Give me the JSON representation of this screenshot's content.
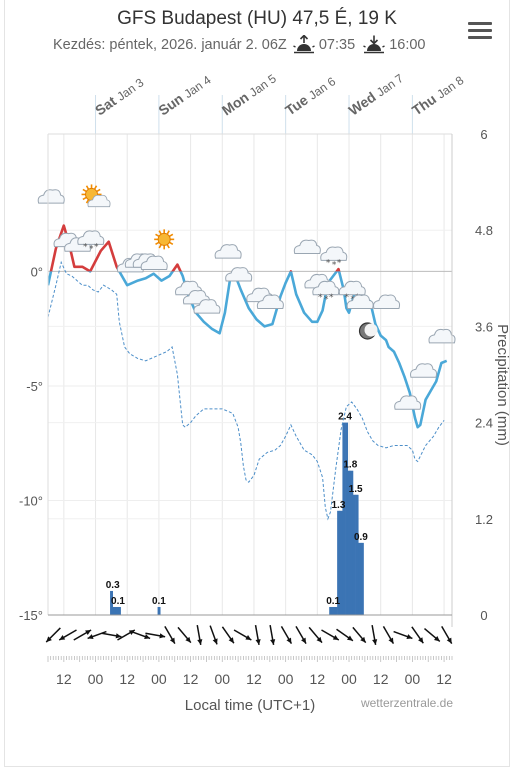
{
  "header": {
    "title": "GFS Budapest (HU) 47,5 É, 19 K",
    "start_label": "Kezdés: péntek, 2026. január 2. 06Z",
    "sunrise": "07:35",
    "sunset": "16:00",
    "sunrise_icon": "sunrise-icon",
    "sunset_icon": "sunset-icon",
    "menu_icon": "hamburger-menu-icon"
  },
  "footer": {
    "credit": "wetterzentrale.de"
  },
  "chart_data": {
    "type": "line",
    "xlabel": "Local time (UTC+1)",
    "ylabel_right": "Precipitation (mm)",
    "temp_ylim": [
      -15,
      6
    ],
    "precip_ylim": [
      0,
      6
    ],
    "x_range_hours": [
      0,
      153
    ],
    "day_labels": [
      {
        "day": "Sat",
        "date": "Jan 3",
        "h": 30
      },
      {
        "day": "Sun",
        "date": "Jan 4",
        "h": 54
      },
      {
        "day": "Mon",
        "date": "Jan 5",
        "h": 78
      },
      {
        "day": "Tue",
        "date": "Jan 6",
        "h": 102
      },
      {
        "day": "Wed",
        "date": "Jan 7",
        "h": 126
      },
      {
        "day": "Thu",
        "date": "Jan 8",
        "h": 150
      }
    ],
    "x_ticks": [
      {
        "label": "12",
        "h": 6
      },
      {
        "label": "00",
        "h": 18
      },
      {
        "label": "12",
        "h": 30
      },
      {
        "label": "00",
        "h": 42
      },
      {
        "label": "12",
        "h": 54
      },
      {
        "label": "00",
        "h": 66
      },
      {
        "label": "12",
        "h": 78
      },
      {
        "label": "00",
        "h": 90
      },
      {
        "label": "12",
        "h": 102
      },
      {
        "label": "00",
        "h": 114
      },
      {
        "label": "12",
        "h": 126
      },
      {
        "label": "00",
        "h": 138
      },
      {
        "label": "12",
        "h": 150
      }
    ],
    "temp_ticks": [
      {
        "label": "0°",
        "v": 0
      },
      {
        "label": "-5°",
        "v": -5
      },
      {
        "label": "-10°",
        "v": -10
      },
      {
        "label": "-15°",
        "v": -15
      }
    ],
    "precip_ticks": [
      {
        "label": "0",
        "v": 0
      },
      {
        "label": "1.2",
        "v": 1.2
      },
      {
        "label": "2.4",
        "v": 2.4
      },
      {
        "label": "3.6",
        "v": 3.6
      },
      {
        "label": "4.8",
        "v": 4.8
      },
      {
        "label": "6",
        "v": 6
      }
    ],
    "series": [
      {
        "name": "Temperature",
        "unit": "°C",
        "color_above": "#d43d3d",
        "color_below": "#4aa8d8",
        "points": [
          [
            0,
            -0.6
          ],
          [
            3,
            1.0
          ],
          [
            6,
            2.0
          ],
          [
            8,
            1.2
          ],
          [
            10,
            0.2
          ],
          [
            13,
            0.2
          ],
          [
            16,
            0.0
          ],
          [
            20,
            0.9
          ],
          [
            23,
            1.3
          ],
          [
            26,
            0.2
          ],
          [
            30,
            -0.6
          ],
          [
            34,
            -0.4
          ],
          [
            37,
            -0.3
          ],
          [
            40,
            -0.1
          ],
          [
            43,
            -0.4
          ],
          [
            46,
            -0.2
          ],
          [
            49,
            0.3
          ],
          [
            51,
            -0.2
          ],
          [
            53,
            -1.0
          ],
          [
            56,
            -1.8
          ],
          [
            59,
            -2.2
          ],
          [
            62,
            -2.5
          ],
          [
            65,
            -2.7
          ],
          [
            67,
            -1.8
          ],
          [
            69,
            -0.3
          ],
          [
            71,
            -0.2
          ],
          [
            73,
            -0.8
          ],
          [
            76,
            -1.6
          ],
          [
            79,
            -2.1
          ],
          [
            82,
            -2.4
          ],
          [
            85,
            -2.3
          ],
          [
            88,
            -1.1
          ],
          [
            90,
            -0.5
          ],
          [
            92,
            0.0
          ],
          [
            94,
            -1.0
          ],
          [
            97,
            -1.8
          ],
          [
            100,
            -2.2
          ],
          [
            102,
            -2.2
          ],
          [
            104,
            -1.7
          ],
          [
            106,
            -0.5
          ],
          [
            108,
            -0.2
          ],
          [
            110,
            0.1
          ],
          [
            112,
            -0.8
          ],
          [
            113,
            -1.6
          ],
          [
            114,
            -1.8
          ],
          [
            116,
            -1.0
          ],
          [
            118,
            -0.8
          ],
          [
            120,
            -1.5
          ],
          [
            122,
            -1.3
          ],
          [
            124,
            -2.3
          ],
          [
            126,
            -2.8
          ],
          [
            128,
            -3.0
          ],
          [
            129,
            -3.3
          ],
          [
            131,
            -3.5
          ],
          [
            133,
            -4.0
          ],
          [
            135,
            -4.6
          ],
          [
            137,
            -5.3
          ],
          [
            139,
            -6.4
          ],
          [
            140,
            -6.8
          ],
          [
            141,
            -6.7
          ],
          [
            143,
            -5.6
          ],
          [
            145,
            -5.2
          ],
          [
            147,
            -4.8
          ],
          [
            149,
            -4.0
          ],
          [
            151,
            -3.9
          ]
        ]
      },
      {
        "name": "Dewpoint",
        "unit": "°C",
        "color": "#4d8fc9",
        "points": [
          [
            0,
            -2.0
          ],
          [
            3,
            -0.6
          ],
          [
            5,
            0.4
          ],
          [
            7,
            -0.1
          ],
          [
            9,
            -0.2
          ],
          [
            11,
            -0.4
          ],
          [
            13,
            -0.6
          ],
          [
            15,
            -0.6
          ],
          [
            17,
            -0.8
          ],
          [
            19,
            -0.9
          ],
          [
            21,
            -0.6
          ],
          [
            24,
            -0.8
          ],
          [
            26,
            -1.0
          ],
          [
            27,
            -2.2
          ],
          [
            29,
            -3.3
          ],
          [
            31,
            -3.6
          ],
          [
            34,
            -3.8
          ],
          [
            37,
            -3.9
          ],
          [
            41,
            -3.7
          ],
          [
            45,
            -3.5
          ],
          [
            47,
            -3.3
          ],
          [
            49,
            -4.5
          ],
          [
            50,
            -5.6
          ],
          [
            51,
            -6.7
          ],
          [
            52,
            -6.8
          ],
          [
            54,
            -6.6
          ],
          [
            56,
            -6.3
          ],
          [
            59,
            -6.0
          ],
          [
            62,
            -6.0
          ],
          [
            66,
            -6.0
          ],
          [
            70,
            -6.2
          ],
          [
            72,
            -6.8
          ],
          [
            73,
            -7.5
          ],
          [
            74,
            -8.5
          ],
          [
            75,
            -9.1
          ],
          [
            76,
            -9.2
          ],
          [
            78,
            -8.9
          ],
          [
            80,
            -8.2
          ],
          [
            83,
            -7.9
          ],
          [
            86,
            -7.8
          ],
          [
            88,
            -7.6
          ],
          [
            90,
            -7.2
          ],
          [
            92,
            -6.7
          ],
          [
            94,
            -7.2
          ],
          [
            97,
            -7.8
          ],
          [
            100,
            -8.0
          ],
          [
            102,
            -8.3
          ],
          [
            104,
            -9.0
          ],
          [
            105,
            -10.3
          ],
          [
            106,
            -10.8
          ],
          [
            107,
            -10.5
          ],
          [
            109,
            -8.6
          ],
          [
            111,
            -6.9
          ],
          [
            113,
            -5.9
          ],
          [
            115,
            -5.7
          ],
          [
            117,
            -6.0
          ],
          [
            119,
            -6.4
          ],
          [
            121,
            -7.0
          ],
          [
            123,
            -7.4
          ],
          [
            125,
            -7.6
          ],
          [
            128,
            -7.7
          ],
          [
            131,
            -7.6
          ],
          [
            134,
            -7.6
          ],
          [
            136,
            -7.6
          ],
          [
            138,
            -7.8
          ],
          [
            139,
            -8.2
          ],
          [
            140,
            -8.3
          ],
          [
            143,
            -7.6
          ],
          [
            146,
            -7.2
          ],
          [
            148,
            -6.8
          ],
          [
            150,
            -6.5
          ]
        ]
      },
      {
        "name": "Precipitation",
        "unit": "mm",
        "type": "bar",
        "color": "#3b74b4",
        "bars": [
          [
            24,
            0.3
          ],
          [
            25,
            0.1
          ],
          [
            26,
            0.1
          ],
          [
            27,
            0.1
          ],
          [
            42,
            0.1
          ],
          [
            107,
            0.1
          ],
          [
            108,
            0.1
          ],
          [
            109,
            0.1
          ],
          [
            110,
            1.3
          ],
          [
            111,
            1.3
          ],
          [
            112,
            2.4
          ],
          [
            113,
            2.4
          ],
          [
            114,
            1.8
          ],
          [
            115,
            1.8
          ],
          [
            116,
            1.5
          ],
          [
            117,
            1.5
          ],
          [
            118,
            0.9
          ],
          [
            119,
            0.9
          ]
        ],
        "labels": [
          {
            "h": 24.5,
            "v": 0.3,
            "text": "0.3"
          },
          {
            "h": 26.5,
            "v": 0.1,
            "text": "0.1"
          },
          {
            "h": 42,
            "v": 0.1,
            "text": "0.1"
          },
          {
            "h": 108,
            "v": 0.1,
            "text": "0.1"
          },
          {
            "h": 110,
            "v": 1.3,
            "text": "1.3"
          },
          {
            "h": 112.5,
            "v": 2.4,
            "text": "2.4"
          },
          {
            "h": 114.5,
            "v": 1.8,
            "text": "1.8"
          },
          {
            "h": 116.5,
            "v": 1.5,
            "text": "1.5"
          },
          {
            "h": 118.5,
            "v": 0.9,
            "text": "0.9"
          }
        ]
      }
    ],
    "weather_icons": [
      {
        "h": 1,
        "v": 3.2,
        "icon": "cloud-icon"
      },
      {
        "h": 7,
        "v": 1.3,
        "icon": "cloud-icon"
      },
      {
        "h": 11,
        "v": 1.1,
        "icon": "cloud-icon"
      },
      {
        "h": 16,
        "v": 1.4,
        "icon": "snow-cloud-icon"
      },
      {
        "h": 18,
        "v": 3.1,
        "icon": "sun-cloud-icon"
      },
      {
        "h": 31,
        "v": 0.2,
        "icon": "cloud-icon"
      },
      {
        "h": 34,
        "v": 0.4,
        "icon": "cloud-icon"
      },
      {
        "h": 37,
        "v": 0.4,
        "icon": "cloud-icon"
      },
      {
        "h": 40,
        "v": 0.3,
        "icon": "cloud-icon"
      },
      {
        "h": 44,
        "v": 1.4,
        "icon": "sun-icon"
      },
      {
        "h": 53,
        "v": -0.8,
        "icon": "cloud-icon"
      },
      {
        "h": 56,
        "v": -1.2,
        "icon": "cloud-icon"
      },
      {
        "h": 60,
        "v": -1.6,
        "icon": "cloud-icon"
      },
      {
        "h": 68,
        "v": 0.8,
        "icon": "cloud-icon"
      },
      {
        "h": 72,
        "v": -0.2,
        "icon": "cloud-icon"
      },
      {
        "h": 80,
        "v": -1.1,
        "icon": "cloud-icon"
      },
      {
        "h": 84,
        "v": -1.4,
        "icon": "cloud-icon"
      },
      {
        "h": 98,
        "v": 1.0,
        "icon": "cloud-icon"
      },
      {
        "h": 102,
        "v": -0.5,
        "icon": "cloud-icon"
      },
      {
        "h": 105,
        "v": -0.8,
        "icon": "snow-cloud-icon"
      },
      {
        "h": 108,
        "v": 0.7,
        "icon": "snow-cloud-icon"
      },
      {
        "h": 115,
        "v": -0.8,
        "icon": "snow-cloud-icon"
      },
      {
        "h": 118,
        "v": -1.4,
        "icon": "cloud-icon"
      },
      {
        "h": 121,
        "v": -2.6,
        "icon": "moon-icon"
      },
      {
        "h": 128,
        "v": -1.4,
        "icon": "cloud-icon"
      },
      {
        "h": 136,
        "v": -5.8,
        "icon": "cloud-icon"
      },
      {
        "h": 142,
        "v": -4.4,
        "icon": "cloud-icon"
      },
      {
        "h": 149,
        "v": -2.9,
        "icon": "cloud-icon"
      }
    ],
    "wind_directions_deg": [
      225,
      240,
      60,
      250,
      100,
      60,
      110,
      100,
      150,
      140,
      170,
      160,
      145,
      120,
      170,
      170,
      150,
      150,
      140,
      120,
      125,
      140,
      170,
      150,
      110,
      145,
      130,
      150
    ]
  }
}
